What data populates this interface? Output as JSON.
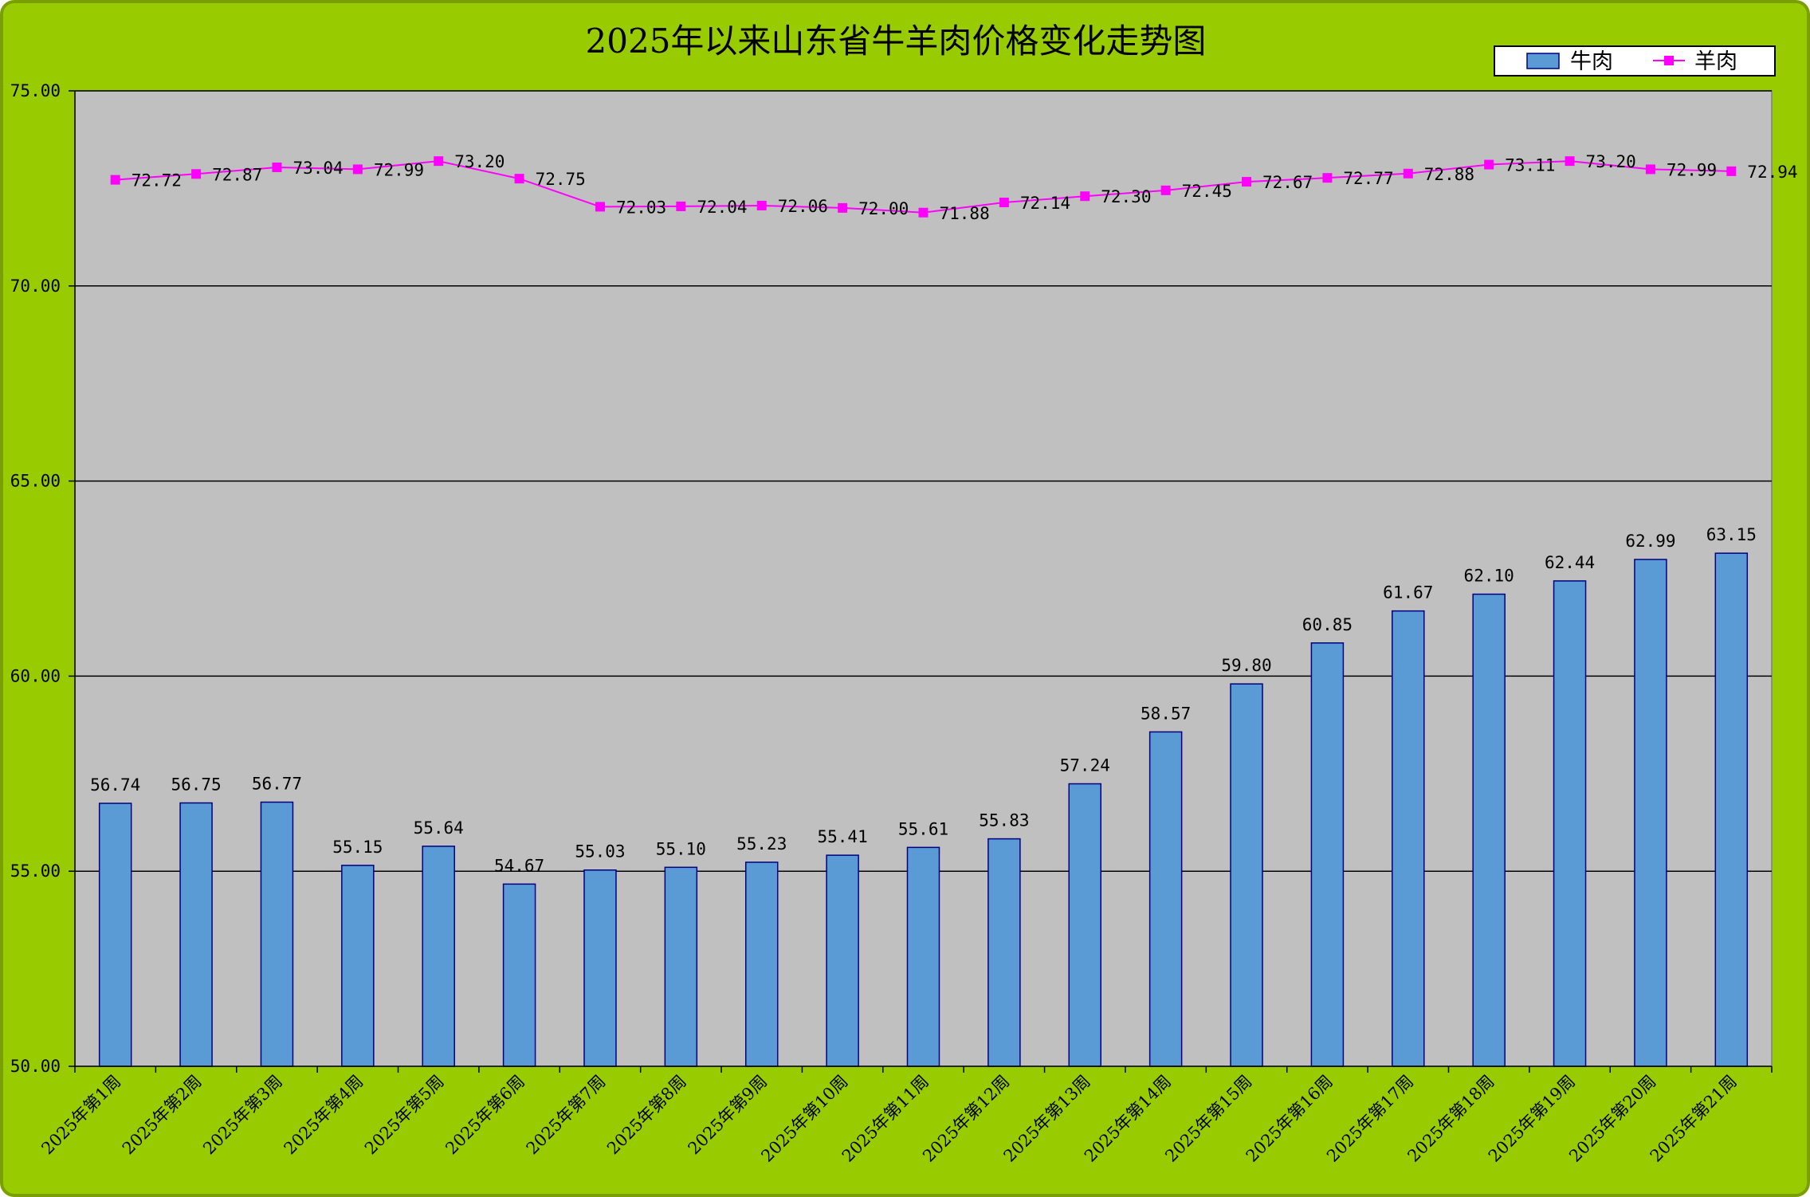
{
  "chart_data": {
    "type": "bar",
    "title": "2025年以来山东省牛羊肉价格变化走势图",
    "ylim": [
      50,
      75
    ],
    "yticks": [
      "50.00",
      "55.00",
      "60.00",
      "65.00",
      "70.00",
      "75.00"
    ],
    "grid": true,
    "legend_position": "top-right",
    "categories": [
      "2025年第1周",
      "2025年第2周",
      "2025年第3周",
      "2025年第4周",
      "2025年第5周",
      "2025年第6周",
      "2025年第7周",
      "2025年第8周",
      "2025年第9周",
      "2025年第10周",
      "2025年第11周",
      "2025年第12周",
      "2025年第13周",
      "2025年第14周",
      "2025年第15周",
      "2025年第16周",
      "2025年第17周",
      "2025年第18周",
      "2025年第19周",
      "2025年第20周",
      "2025年第21周"
    ],
    "series": [
      {
        "name": "牛肉",
        "kind": "bar",
        "color": "#5B9BD5",
        "values": [
          56.74,
          56.75,
          56.77,
          55.15,
          55.64,
          54.67,
          55.03,
          55.1,
          55.23,
          55.41,
          55.61,
          55.83,
          57.24,
          58.57,
          59.8,
          60.85,
          61.67,
          62.1,
          62.44,
          62.99,
          63.15
        ]
      },
      {
        "name": "羊肉",
        "kind": "line",
        "color": "#FF00FF",
        "values": [
          72.72,
          72.87,
          73.04,
          72.99,
          73.2,
          72.75,
          72.03,
          72.04,
          72.06,
          72.0,
          71.88,
          72.14,
          72.3,
          72.45,
          72.67,
          72.77,
          72.88,
          73.11,
          73.2,
          72.99,
          72.94
        ]
      }
    ]
  },
  "colors": {
    "background": "#99CC00",
    "plot_area": "#C0C0C0",
    "bar_fill": "#5B9BD5",
    "bar_border": "#000080",
    "line": "#FF00FF"
  }
}
